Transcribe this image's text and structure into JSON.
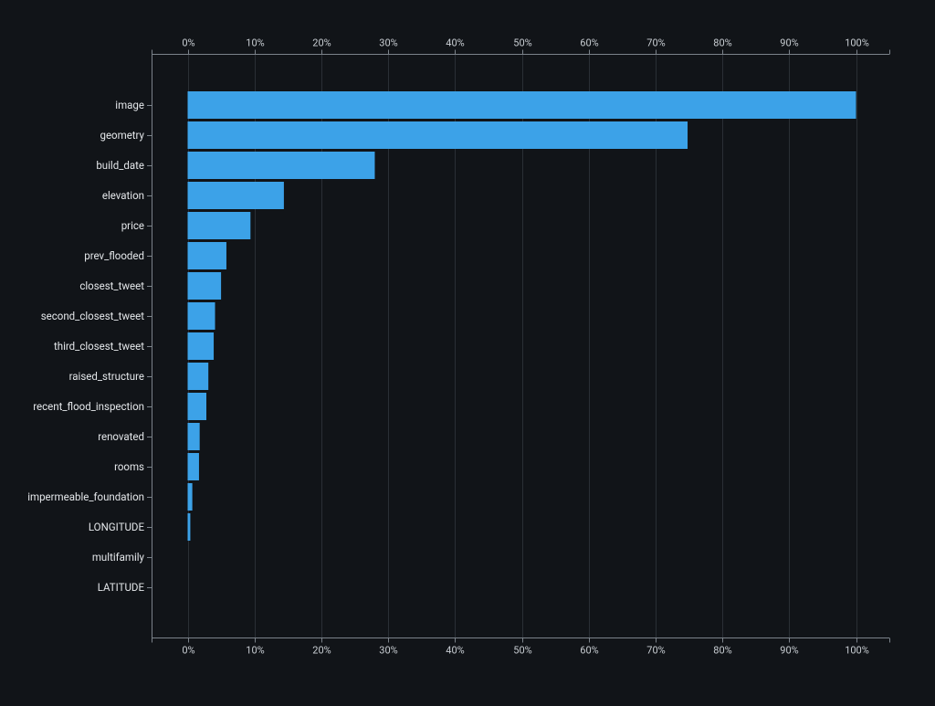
{
  "chart_data": {
    "type": "bar",
    "orientation": "horizontal",
    "title": "",
    "xlabel": "",
    "ylabel": "",
    "x_axis_position": "top and bottom",
    "grid": true,
    "xlim": [
      0,
      100
    ],
    "x_ticks": [
      "0%",
      "10%",
      "20%",
      "30%",
      "40%",
      "50%",
      "60%",
      "70%",
      "80%",
      "90%",
      "100%"
    ],
    "categories": [
      "image",
      "geometry",
      "build_date",
      "elevation",
      "price",
      "prev_flooded",
      "closest_tweet",
      "second_closest_tweet",
      "third_closest_tweet",
      "raised_structure",
      "recent_flood_inspection",
      "renovated",
      "rooms",
      "impermeable_foundation",
      "LONGITUDE",
      "multifamily",
      "LATITUDE"
    ],
    "values": [
      100,
      74.8,
      28,
      14.4,
      9.4,
      5.8,
      5.0,
      4.1,
      3.9,
      3.1,
      2.8,
      1.8,
      1.7,
      0.7,
      0.4,
      0,
      0
    ],
    "bar_color": "#3ca2e8",
    "background_color": "#111418"
  }
}
